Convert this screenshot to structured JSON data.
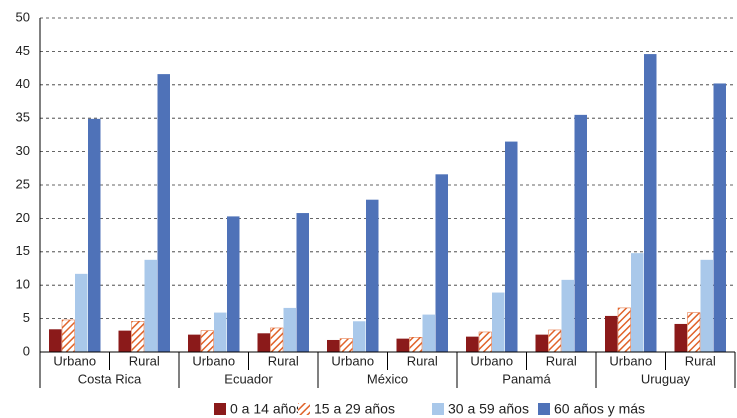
{
  "chart_data": {
    "type": "bar",
    "categories": [
      "Urbano",
      "Rural",
      "Urbano",
      "Rural",
      "Urbano",
      "Rural",
      "Urbano",
      "Rural",
      "Urbano",
      "Rural"
    ],
    "groups": [
      "Costa Rica",
      "Ecuador",
      "México",
      "Panamá",
      "Uruguay"
    ],
    "series": [
      {
        "name": "0 a 14 años",
        "color": "#8b1a1a",
        "values": [
          3.4,
          3.2,
          2.6,
          2.8,
          1.8,
          2.0,
          2.3,
          2.6,
          5.4,
          4.2
        ]
      },
      {
        "name": "15 a 29 años",
        "color": "#e0632a",
        "hatch": true,
        "values": [
          4.8,
          4.6,
          3.2,
          3.6,
          2.0,
          2.2,
          3.0,
          3.3,
          6.6,
          5.9
        ]
      },
      {
        "name": "30 a 59 años",
        "color": "#a9c8ea",
        "values": [
          11.7,
          13.8,
          5.9,
          6.6,
          4.6,
          5.6,
          8.9,
          10.8,
          14.8,
          13.8
        ]
      },
      {
        "name": "60 años y más",
        "color": "#4f72b8",
        "values": [
          34.9,
          41.6,
          20.3,
          20.8,
          22.8,
          26.6,
          31.5,
          35.5,
          44.6,
          40.2
        ]
      }
    ],
    "ylim": [
      0,
      50
    ],
    "yticks": [
      0,
      5,
      10,
      15,
      20,
      25,
      30,
      35,
      40,
      45,
      50
    ],
    "grid": true
  }
}
